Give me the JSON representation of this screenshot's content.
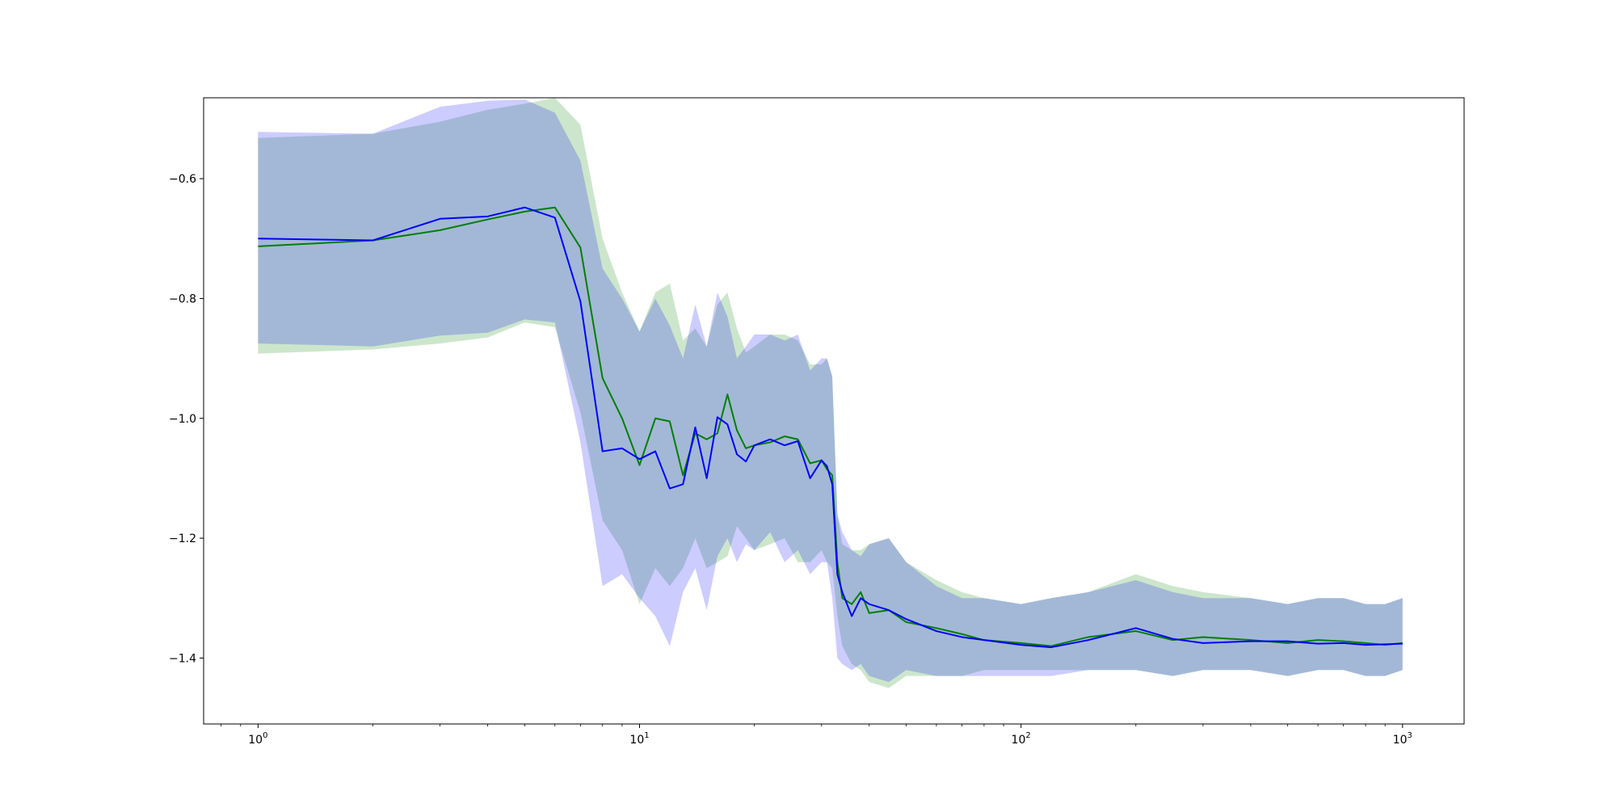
{
  "chart_data": {
    "type": "line",
    "title": "",
    "xlabel": "",
    "ylabel": "",
    "x_scale": "log",
    "xlim": [
      0.72,
      1450
    ],
    "ylim": [
      -1.51,
      -0.465
    ],
    "x_ticks": [
      {
        "value": 1,
        "base": "10",
        "exp": "0"
      },
      {
        "value": 10,
        "base": "10",
        "exp": "1"
      },
      {
        "value": 100,
        "base": "10",
        "exp": "2"
      },
      {
        "value": 1000,
        "base": "10",
        "exp": "3"
      }
    ],
    "y_ticks": [
      {
        "value": -1.4,
        "label": "−1.4"
      },
      {
        "value": -1.2,
        "label": "−1.2"
      },
      {
        "value": -1.0,
        "label": "−1.0"
      },
      {
        "value": -0.8,
        "label": "−0.8"
      },
      {
        "value": -0.6,
        "label": "−0.6"
      }
    ],
    "grid": false,
    "legend": "none",
    "colors": {
      "green": "#008000",
      "blue": "#0000ff",
      "green_band": "rgba(0,128,0,0.2)",
      "blue_band": "rgba(0,0,255,0.2)"
    },
    "series": [
      {
        "color": "#008000",
        "x": [
          1,
          2,
          3,
          4,
          5,
          6,
          7,
          8,
          9,
          10,
          11,
          12,
          13,
          14,
          15,
          16,
          17,
          18,
          19,
          20,
          22,
          24,
          26,
          28,
          30,
          31,
          32,
          33,
          34,
          36,
          38,
          40,
          45,
          50,
          60,
          70,
          80,
          100,
          120,
          150,
          200,
          250,
          300,
          400,
          500,
          600,
          700,
          800,
          900,
          1000
        ],
        "y": [
          -0.713,
          -0.703,
          -0.686,
          -0.668,
          -0.655,
          -0.648,
          -0.715,
          -0.933,
          -1.0,
          -1.078,
          -1.0,
          -1.005,
          -1.095,
          -1.025,
          -1.035,
          -1.025,
          -0.96,
          -1.02,
          -1.05,
          -1.045,
          -1.04,
          -1.03,
          -1.035,
          -1.075,
          -1.07,
          -1.085,
          -1.095,
          -1.24,
          -1.3,
          -1.31,
          -1.29,
          -1.325,
          -1.32,
          -1.34,
          -1.35,
          -1.36,
          -1.37,
          -1.375,
          -1.38,
          -1.365,
          -1.355,
          -1.37,
          -1.365,
          -1.37,
          -1.375,
          -1.37,
          -1.372,
          -1.375,
          -1.378,
          -1.375
        ],
        "lower": [
          -0.892,
          -0.885,
          -0.875,
          -0.865,
          -0.84,
          -0.848,
          -0.99,
          -1.17,
          -1.22,
          -1.31,
          -1.25,
          -1.28,
          -1.25,
          -1.2,
          -1.25,
          -1.24,
          -1.23,
          -1.18,
          -1.2,
          -1.22,
          -1.21,
          -1.2,
          -1.24,
          -1.24,
          -1.22,
          -1.24,
          -1.25,
          -1.33,
          -1.38,
          -1.41,
          -1.42,
          -1.44,
          -1.45,
          -1.43,
          -1.43,
          -1.43,
          -1.42,
          -1.42,
          -1.42,
          -1.42,
          -1.42,
          -1.43,
          -1.42,
          -1.42,
          -1.43,
          -1.42,
          -1.42,
          -1.43,
          -1.43,
          -1.42
        ],
        "upper": [
          -0.532,
          -0.525,
          -0.505,
          -0.485,
          -0.475,
          -0.465,
          -0.51,
          -0.7,
          -0.79,
          -0.855,
          -0.79,
          -0.775,
          -0.87,
          -0.85,
          -0.88,
          -0.81,
          -0.79,
          -0.85,
          -0.89,
          -0.88,
          -0.86,
          -0.86,
          -0.87,
          -0.91,
          -0.91,
          -0.9,
          -0.93,
          -1.16,
          -1.21,
          -1.22,
          -1.22,
          -1.21,
          -1.2,
          -1.24,
          -1.27,
          -1.29,
          -1.3,
          -1.31,
          -1.3,
          -1.29,
          -1.26,
          -1.28,
          -1.29,
          -1.3,
          -1.31,
          -1.3,
          -1.3,
          -1.31,
          -1.31,
          -1.3
        ]
      },
      {
        "color": "#0000ff",
        "x": [
          1,
          2,
          3,
          4,
          5,
          6,
          7,
          8,
          9,
          10,
          11,
          12,
          13,
          14,
          15,
          16,
          17,
          18,
          19,
          20,
          22,
          24,
          26,
          28,
          30,
          31,
          32,
          33,
          34,
          36,
          38,
          40,
          45,
          50,
          60,
          70,
          80,
          100,
          120,
          150,
          200,
          250,
          300,
          400,
          500,
          600,
          700,
          800,
          900,
          1000
        ],
        "y": [
          -0.7,
          -0.703,
          -0.667,
          -0.663,
          -0.648,
          -0.665,
          -0.805,
          -1.055,
          -1.05,
          -1.068,
          -1.055,
          -1.117,
          -1.11,
          -1.015,
          -1.1,
          -0.998,
          -1.01,
          -1.06,
          -1.072,
          -1.045,
          -1.035,
          -1.045,
          -1.038,
          -1.1,
          -1.07,
          -1.08,
          -1.11,
          -1.26,
          -1.29,
          -1.33,
          -1.3,
          -1.31,
          -1.32,
          -1.335,
          -1.355,
          -1.365,
          -1.37,
          -1.378,
          -1.382,
          -1.37,
          -1.35,
          -1.368,
          -1.375,
          -1.372,
          -1.372,
          -1.376,
          -1.375,
          -1.378,
          -1.377,
          -1.376
        ],
        "lower": [
          -0.875,
          -0.88,
          -0.862,
          -0.857,
          -0.835,
          -0.84,
          -1.04,
          -1.28,
          -1.26,
          -1.3,
          -1.33,
          -1.38,
          -1.29,
          -1.25,
          -1.32,
          -1.23,
          -1.2,
          -1.24,
          -1.21,
          -1.22,
          -1.19,
          -1.24,
          -1.22,
          -1.26,
          -1.24,
          -1.24,
          -1.3,
          -1.4,
          -1.41,
          -1.42,
          -1.41,
          -1.43,
          -1.44,
          -1.42,
          -1.43,
          -1.43,
          -1.43,
          -1.43,
          -1.43,
          -1.42,
          -1.42,
          -1.43,
          -1.42,
          -1.42,
          -1.43,
          -1.42,
          -1.42,
          -1.43,
          -1.43,
          -1.42
        ],
        "upper": [
          -0.522,
          -0.525,
          -0.48,
          -0.47,
          -0.468,
          -0.49,
          -0.57,
          -0.75,
          -0.8,
          -0.855,
          -0.8,
          -0.845,
          -0.9,
          -0.81,
          -0.88,
          -0.79,
          -0.83,
          -0.9,
          -0.88,
          -0.86,
          -0.86,
          -0.87,
          -0.86,
          -0.92,
          -0.9,
          -0.9,
          -0.93,
          -1.16,
          -1.19,
          -1.22,
          -1.23,
          -1.21,
          -1.2,
          -1.24,
          -1.28,
          -1.3,
          -1.3,
          -1.31,
          -1.3,
          -1.29,
          -1.27,
          -1.29,
          -1.3,
          -1.3,
          -1.31,
          -1.3,
          -1.3,
          -1.31,
          -1.31,
          -1.3
        ]
      }
    ]
  }
}
